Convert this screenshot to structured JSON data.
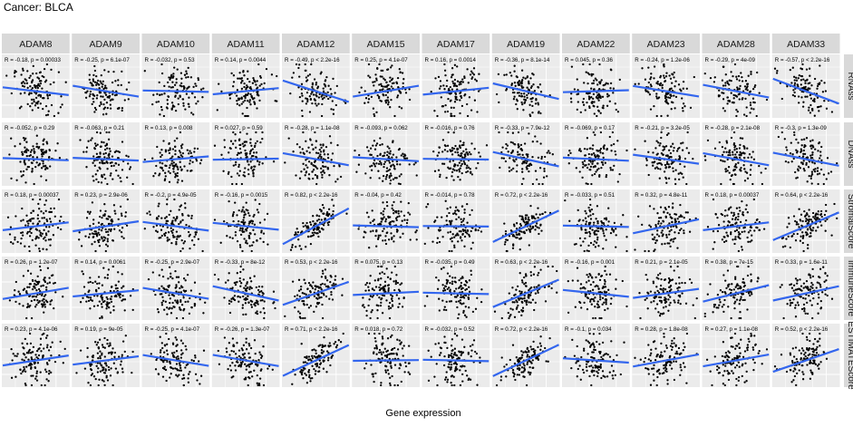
{
  "chart_data": {
    "type": "scatter",
    "title": "Cancer: BLCA",
    "xlabel": "Gene expression",
    "column_labels": [
      "ADAM8",
      "ADAM9",
      "ADAM10",
      "ADAM11",
      "ADAM12",
      "ADAM15",
      "ADAM17",
      "ADAM19",
      "ADAM22",
      "ADAM23",
      "ADAM28",
      "ADAM33"
    ],
    "row_labels": [
      "RNAss",
      "DNAss",
      "StromalScore",
      "ImmuneScore",
      "ESTIMATEScore"
    ],
    "grid": true,
    "fit_line_color": "#3366ee",
    "point_color": "#000000",
    "panel_background": "#ebebeb",
    "strip_background": "#d9d9d9",
    "panels": [
      [
        {
          "label": "R = -0.18, p = 0.00033",
          "r": -0.18
        },
        {
          "label": "R = -0.25, p = 6.1e-07",
          "r": -0.25
        },
        {
          "label": "R = -0.032, p = 0.53",
          "r": -0.032
        },
        {
          "label": "R = 0.14, p = 0.0044",
          "r": 0.14
        },
        {
          "label": "R = -0.49, p < 2.2e-16",
          "r": -0.49
        },
        {
          "label": "R = 0.25, p = 4.1e-07",
          "r": 0.25
        },
        {
          "label": "R = 0.16, p = 0.0014",
          "r": 0.16
        },
        {
          "label": "R = -0.36, p = 8.1e-14",
          "r": -0.36
        },
        {
          "label": "R = 0.045, p = 0.36",
          "r": 0.045
        },
        {
          "label": "R = -0.24, p = 1.2e-06",
          "r": -0.24
        },
        {
          "label": "R = -0.29, p = 4e-09",
          "r": -0.29
        },
        {
          "label": "R = -0.57, p < 2.2e-16",
          "r": -0.57
        }
      ],
      [
        {
          "label": "R = -0.052, p = 0.29",
          "r": -0.052
        },
        {
          "label": "R = -0.063, p = 0.21",
          "r": -0.063
        },
        {
          "label": "R = 0.13, p = 0.008",
          "r": 0.13
        },
        {
          "label": "R = 0.027, p = 0.59",
          "r": 0.027
        },
        {
          "label": "R = -0.28, p = 1.1e-08",
          "r": -0.28
        },
        {
          "label": "R = -0.093, p = 0.062",
          "r": -0.093
        },
        {
          "label": "R = -0.016, p = 0.76",
          "r": -0.016
        },
        {
          "label": "R = -0.33, p = 7.9e-12",
          "r": -0.33
        },
        {
          "label": "R = -0.069, p = 0.17",
          "r": -0.069
        },
        {
          "label": "R = -0.21, p = 3.2e-05",
          "r": -0.21
        },
        {
          "label": "R = -0.28, p = 2.1e-08",
          "r": -0.28
        },
        {
          "label": "R = -0.3, p = 1.3e-09",
          "r": -0.3
        }
      ],
      [
        {
          "label": "R = 0.18, p = 0.00037",
          "r": 0.18
        },
        {
          "label": "R = 0.23, p = 2.9e-06",
          "r": 0.23
        },
        {
          "label": "R = -0.2, p = 4.9e-05",
          "r": -0.2
        },
        {
          "label": "R = -0.16, p = 0.0015",
          "r": -0.16
        },
        {
          "label": "R = 0.82, p < 2.2e-16",
          "r": 0.82
        },
        {
          "label": "R = -0.04, p = 0.42",
          "r": -0.04
        },
        {
          "label": "R = -0.014, p = 0.78",
          "r": -0.014
        },
        {
          "label": "R = 0.72, p < 2.2e-16",
          "r": 0.72
        },
        {
          "label": "R = -0.033, p = 0.51",
          "r": -0.033
        },
        {
          "label": "R = 0.32, p = 4.8e-11",
          "r": 0.32
        },
        {
          "label": "R = 0.18, p = 0.00037",
          "r": 0.18
        },
        {
          "label": "R = 0.64, p < 2.2e-16",
          "r": 0.64
        }
      ],
      [
        {
          "label": "R = 0.26, p = 1.2e-07",
          "r": 0.26
        },
        {
          "label": "R = 0.14, p = 0.0061",
          "r": 0.14
        },
        {
          "label": "R = -0.25, p = 2.9e-07",
          "r": -0.25
        },
        {
          "label": "R = -0.33, p = 8e-12",
          "r": -0.33
        },
        {
          "label": "R = 0.53, p < 2.2e-16",
          "r": 0.53
        },
        {
          "label": "R = 0.075, p = 0.13",
          "r": 0.075
        },
        {
          "label": "R = -0.035, p = 0.49",
          "r": -0.035
        },
        {
          "label": "R = 0.63, p < 2.2e-16",
          "r": 0.63
        },
        {
          "label": "R = -0.16, p = 0.001",
          "r": -0.16
        },
        {
          "label": "R = 0.21, p = 2.1e-05",
          "r": 0.21
        },
        {
          "label": "R = 0.38, p = 7e-15",
          "r": 0.38
        },
        {
          "label": "R = 0.33, p = 1.6e-11",
          "r": 0.33
        }
      ],
      [
        {
          "label": "R = 0.23, p = 4.1e-06",
          "r": 0.23
        },
        {
          "label": "R = 0.19, p = 9e-05",
          "r": 0.19
        },
        {
          "label": "R = -0.25, p = 4.1e-07",
          "r": -0.25
        },
        {
          "label": "R = -0.26, p = 1.3e-07",
          "r": -0.26
        },
        {
          "label": "R = 0.71, p < 2.2e-16",
          "r": 0.71
        },
        {
          "label": "R = 0.018, p = 0.72",
          "r": 0.018
        },
        {
          "label": "R = -0.032, p = 0.52",
          "r": -0.032
        },
        {
          "label": "R = 0.72, p < 2.2e-16",
          "r": 0.72
        },
        {
          "label": "R = -0.1, p = 0.034",
          "r": -0.1
        },
        {
          "label": "R = 0.28, p = 1.8e-08",
          "r": 0.28
        },
        {
          "label": "R = 0.27, p = 1.1e-08",
          "r": 0.27
        },
        {
          "label": "R = 0.52, p < 2.2e-16",
          "r": 0.52
        }
      ]
    ]
  }
}
